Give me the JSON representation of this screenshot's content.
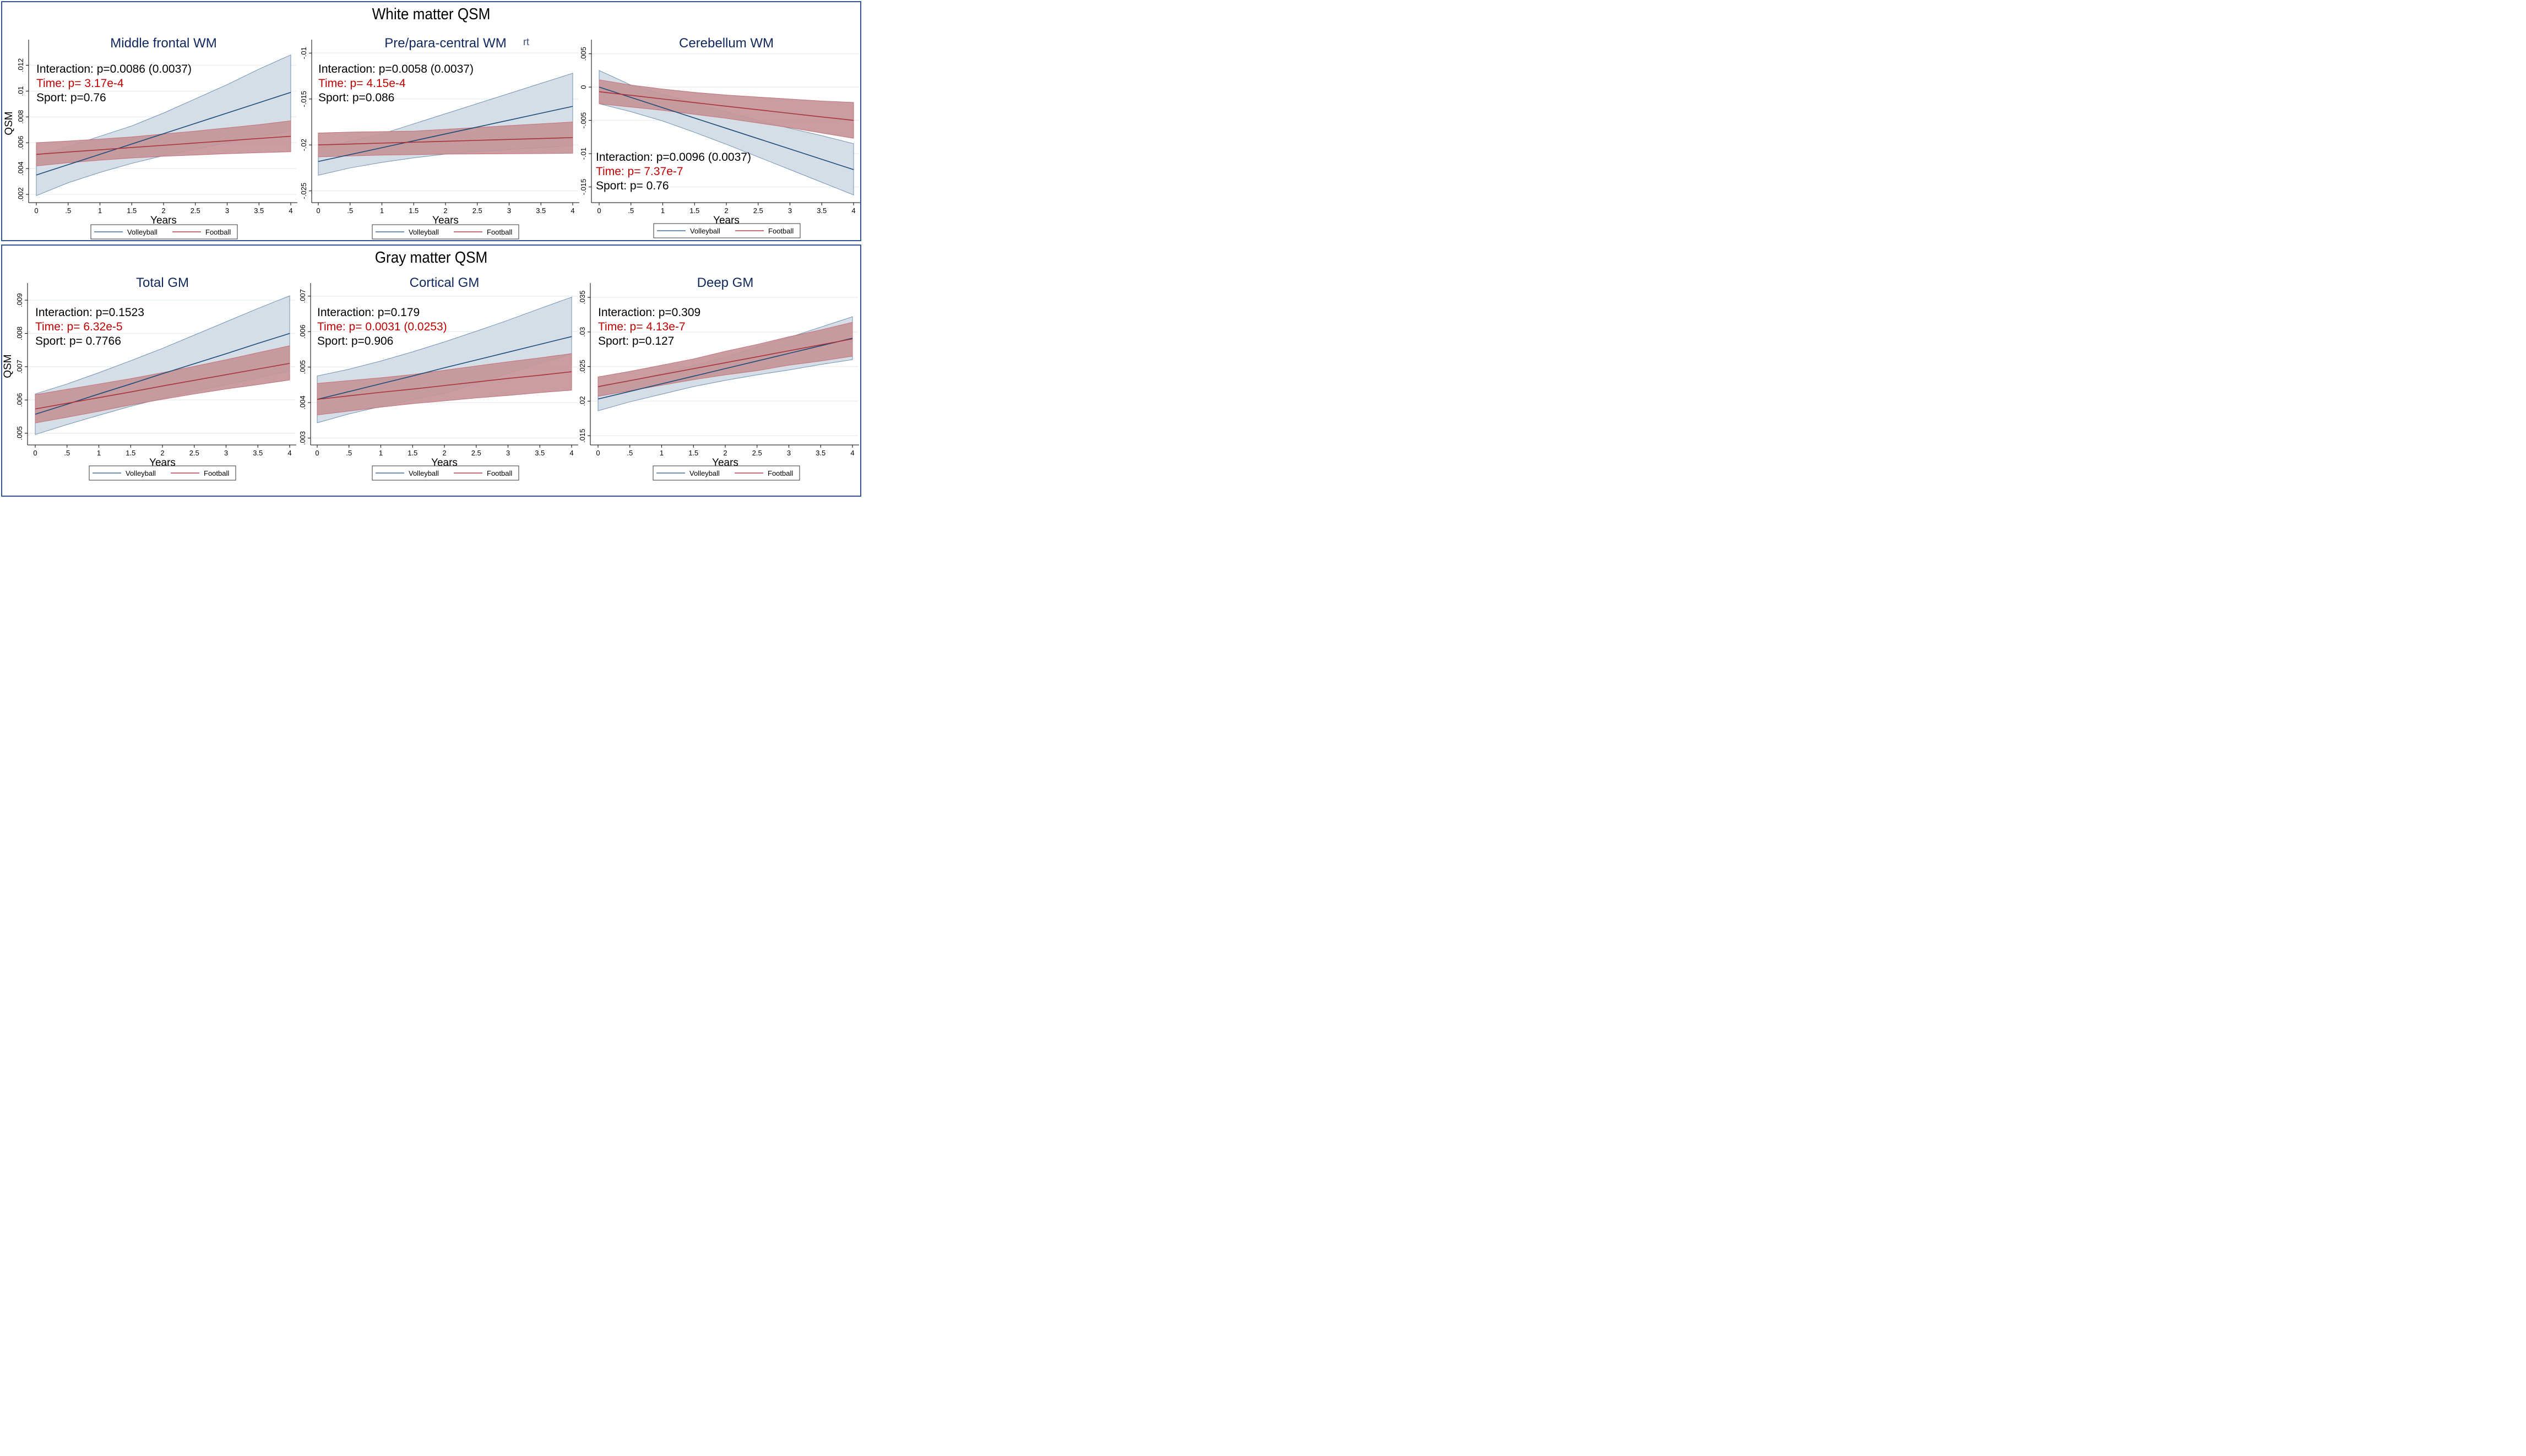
{
  "sections": [
    {
      "id": "wm",
      "title": "White matter QSM"
    },
    {
      "id": "gm",
      "title": "Gray matter QSM"
    }
  ],
  "stray_text": "rt",
  "colors": {
    "volleyball_line": "#1a4a78",
    "volleyball_band": "#d5dee6",
    "volleyball_band_edge": "#6f91b3",
    "football_line": "#a83238",
    "football_band": "#c4959a",
    "football_band_edge": "#c47178",
    "title": "#10275e",
    "significant_text": "#c00000",
    "frame": "#34558f",
    "grid": "#e7eff2"
  },
  "legend": {
    "items": [
      "Volleyball",
      "Football"
    ]
  },
  "chart_data": [
    {
      "type": "line",
      "section": "wm",
      "title": "Middle frontal WM",
      "xlabel": "Years",
      "ylabel": "QSM",
      "x": [
        0,
        4
      ],
      "xticks": [
        0,
        0.5,
        1,
        1.5,
        2,
        2.5,
        3,
        3.5,
        4
      ],
      "xtick_labels": [
        "0",
        ".5",
        "1",
        "1.5",
        "2",
        "2.5",
        "3",
        "3.5",
        "4"
      ],
      "ylim": [
        0.0017,
        0.0133
      ],
      "yticks": [
        0.002,
        0.004,
        0.006,
        0.008,
        0.01,
        0.012
      ],
      "ytick_labels": [
        ".002",
        ".004",
        ".006",
        ".008",
        ".01",
        ".012"
      ],
      "grid": true,
      "legend": "bottom",
      "annotation_position": "top-left",
      "annotations": [
        {
          "text": "Interaction: p=0.0086 (0.0037)",
          "significant": false
        },
        {
          "text": "Time: p= 3.17e-4",
          "significant": true
        },
        {
          "text": "Sport: p=0.76",
          "significant": false
        }
      ],
      "series": [
        {
          "name": "Volleyball",
          "x": [
            0,
            0.5,
            1,
            1.5,
            2,
            2.5,
            3,
            3.5,
            4
          ],
          "fit": [
            0.0035,
            0.0043,
            0.0051,
            0.0059,
            0.0067,
            0.0075,
            0.0083,
            0.0091,
            0.0099
          ],
          "ci_low": [
            0.0019,
            0.0029,
            0.0037,
            0.0044,
            0.005,
            0.0055,
            0.006,
            0.0065,
            0.0069
          ],
          "ci_high": [
            0.005,
            0.0057,
            0.0065,
            0.0073,
            0.0083,
            0.0094,
            0.0105,
            0.0117,
            0.0128
          ]
        },
        {
          "name": "Football",
          "x": [
            0,
            0.5,
            1,
            1.5,
            2,
            2.5,
            3,
            3.5,
            4
          ],
          "fit": [
            0.0051,
            0.00528,
            0.00545,
            0.00563,
            0.0058,
            0.00598,
            0.00615,
            0.00633,
            0.0065
          ],
          "ci_low": [
            0.0042,
            0.00445,
            0.00465,
            0.00482,
            0.00495,
            0.00505,
            0.00515,
            0.00523,
            0.0053
          ],
          "ci_high": [
            0.006,
            0.00613,
            0.00628,
            0.00645,
            0.00668,
            0.0069,
            0.00715,
            0.0074,
            0.0077
          ]
        }
      ]
    },
    {
      "type": "line",
      "section": "wm",
      "title": "Pre/para-central WM",
      "xlabel": "Years",
      "ylabel": "",
      "x": [
        0,
        4
      ],
      "xticks": [
        0,
        0.5,
        1,
        1.5,
        2,
        2.5,
        3,
        3.5,
        4
      ],
      "xtick_labels": [
        "0",
        ".5",
        "1",
        "1.5",
        "2",
        "2.5",
        "3",
        "3.5",
        "4"
      ],
      "ylim": [
        -0.0258,
        -0.0095
      ],
      "yticks": [
        -0.025,
        -0.02,
        -0.015,
        -0.01
      ],
      "ytick_labels": [
        "-.025",
        "-.02",
        "-.015",
        "-.01"
      ],
      "grid": true,
      "legend": "bottom",
      "annotation_position": "top-left",
      "annotations": [
        {
          "text": "Interaction: p=0.0058 (0.0037)",
          "significant": false
        },
        {
          "text": "Time: p= 4.15e-4",
          "significant": true
        },
        {
          "text": "Sport: p=0.086",
          "significant": false
        }
      ],
      "series": [
        {
          "name": "Volleyball",
          "x": [
            0,
            0.5,
            1,
            1.5,
            2,
            2.5,
            3,
            3.5,
            4
          ],
          "fit": [
            -0.0218,
            -0.02105,
            -0.0203,
            -0.01955,
            -0.0188,
            -0.01805,
            -0.0173,
            -0.01655,
            -0.0158
          ],
          "ci_low": [
            -0.0233,
            -0.0225,
            -0.0219,
            -0.0214,
            -0.021,
            -0.0207,
            -0.0205,
            -0.0203,
            -0.0201
          ],
          "ci_high": [
            -0.0203,
            -0.0196,
            -0.0188,
            -0.0177,
            -0.0166,
            -0.0155,
            -0.0144,
            -0.0133,
            -0.0122
          ]
        },
        {
          "name": "Football",
          "x": [
            0,
            0.5,
            1,
            1.5,
            2,
            2.5,
            3,
            3.5,
            4
          ],
          "fit": [
            -0.02,
            -0.0199,
            -0.0198,
            -0.0197,
            -0.0196,
            -0.0195,
            -0.0194,
            -0.0193,
            -0.0192
          ],
          "ci_low": [
            -0.0213,
            -0.0212,
            -0.0211,
            -0.02105,
            -0.021,
            -0.02098,
            -0.02096,
            -0.02094,
            -0.0209
          ],
          "ci_high": [
            -0.0187,
            -0.0186,
            -0.01855,
            -0.0185,
            -0.0183,
            -0.0181,
            -0.0179,
            -0.0177,
            -0.0175
          ]
        }
      ]
    },
    {
      "type": "line",
      "section": "wm",
      "title": "Cerebellum WM",
      "xlabel": "Years",
      "ylabel": "",
      "x": [
        0,
        4
      ],
      "xticks": [
        0,
        0.5,
        1,
        1.5,
        2,
        2.5,
        3,
        3.5,
        4
      ],
      "xtick_labels": [
        "0",
        ".5",
        "1",
        "1.5",
        "2",
        "2.5",
        "3",
        "3.5",
        "4"
      ],
      "ylim": [
        -0.0167,
        0.0058
      ],
      "yticks": [
        -0.015,
        -0.01,
        -0.005,
        0,
        0.005
      ],
      "ytick_labels": [
        "-.015",
        "-.01",
        "-.005",
        "0",
        ".005"
      ],
      "grid": true,
      "legend": "bottom",
      "annotation_position": "bottom-left",
      "annotations": [
        {
          "text": "Interaction: p=0.0096 (0.0037)",
          "significant": false
        },
        {
          "text": "Time: p= 7.37e-7",
          "significant": true
        },
        {
          "text": "Sport: p= 0.76",
          "significant": false
        }
      ],
      "series": [
        {
          "name": "Volleyball",
          "x": [
            0,
            0.5,
            1,
            1.5,
            2,
            2.5,
            3,
            3.5,
            4
          ],
          "fit": [
            0,
            -0.00155,
            -0.0031,
            -0.00465,
            -0.0062,
            -0.00775,
            -0.0093,
            -0.01085,
            -0.0124
          ],
          "ci_low": [
            -0.0025,
            -0.0037,
            -0.0051,
            -0.0068,
            -0.0086,
            -0.0105,
            -0.0124,
            -0.0143,
            -0.0162
          ],
          "ci_high": [
            0.0025,
            0.0003,
            -0.0011,
            -0.0024,
            -0.0037,
            -0.005,
            -0.0062,
            -0.0073,
            -0.0085
          ]
        },
        {
          "name": "Football",
          "x": [
            0,
            0.5,
            1,
            1.5,
            2,
            2.5,
            3,
            3.5,
            4
          ],
          "fit": [
            -0.0007,
            -0.00124,
            -0.00179,
            -0.00233,
            -0.00288,
            -0.00341,
            -0.00395,
            -0.00448,
            -0.005
          ],
          "ci_low": [
            -0.0025,
            -0.003,
            -0.0035,
            -0.0041,
            -0.0047,
            -0.0054,
            -0.0061,
            -0.0069,
            -0.0077
          ],
          "ci_high": [
            0.0011,
            0.0003,
            -0.0003,
            -0.0008,
            -0.0012,
            -0.0015,
            -0.0018,
            -0.0021,
            -0.0023
          ]
        }
      ]
    },
    {
      "type": "line",
      "section": "gm",
      "title": "Total GM",
      "xlabel": "Years",
      "ylabel": "QSM",
      "x": [
        0,
        4
      ],
      "xticks": [
        0,
        0.5,
        1,
        1.5,
        2,
        2.5,
        3,
        3.5,
        4
      ],
      "xtick_labels": [
        "0",
        ".5",
        "1",
        "1.5",
        "2",
        "2.5",
        "3",
        "3.5",
        "4"
      ],
      "ylim": [
        0.00478,
        0.00925
      ],
      "yticks": [
        0.005,
        0.006,
        0.007,
        0.008,
        0.009
      ],
      "ytick_labels": [
        ".005",
        ".006",
        ".007",
        ".008",
        ".009"
      ],
      "grid": true,
      "legend": "bottom",
      "annotation_position": "top-left",
      "annotations": [
        {
          "text": "Interaction: p=0.1523",
          "significant": false
        },
        {
          "text": "Time: p= 6.32e-5",
          "significant": true
        },
        {
          "text": "Sport: p= 0.7766",
          "significant": false
        }
      ],
      "series": [
        {
          "name": "Volleyball",
          "x": [
            0,
            0.5,
            1,
            1.5,
            2,
            2.5,
            3,
            3.5,
            4
          ],
          "fit": [
            0.00557,
            0.00587,
            0.00618,
            0.00648,
            0.00679,
            0.00709,
            0.00739,
            0.0077,
            0.008
          ],
          "ci_low": [
            0.00496,
            0.00526,
            0.00554,
            0.00581,
            0.00605,
            0.00626,
            0.00646,
            0.00666,
            0.00687
          ],
          "ci_high": [
            0.00618,
            0.00648,
            0.00682,
            0.00718,
            0.00755,
            0.00795,
            0.00835,
            0.00875,
            0.00913
          ]
        },
        {
          "name": "Football",
          "x": [
            0,
            0.5,
            1,
            1.5,
            2,
            2.5,
            3,
            3.5,
            4
          ],
          "fit": [
            0.00573,
            0.0059,
            0.00607,
            0.00624,
            0.00642,
            0.00659,
            0.00676,
            0.00693,
            0.0071
          ],
          "ci_low": [
            0.00531,
            0.00548,
            0.00566,
            0.00585,
            0.00602,
            0.00618,
            0.00633,
            0.00646,
            0.0066
          ],
          "ci_high": [
            0.00616,
            0.00632,
            0.00648,
            0.00664,
            0.00682,
            0.00701,
            0.00721,
            0.00742,
            0.00763
          ]
        }
      ]
    },
    {
      "type": "line",
      "section": "gm",
      "title": "Cortical GM",
      "xlabel": "Years",
      "ylabel": "",
      "x": [
        0,
        4
      ],
      "xticks": [
        0,
        0.5,
        1,
        1.5,
        2,
        2.5,
        3,
        3.5,
        4
      ],
      "xtick_labels": [
        "0",
        ".5",
        "1",
        "1.5",
        "2",
        "2.5",
        "3",
        "3.5",
        "4"
      ],
      "ylim": [
        0.00293,
        0.00712
      ],
      "yticks": [
        0.003,
        0.004,
        0.005,
        0.006,
        0.007
      ],
      "ytick_labels": [
        ".003",
        ".004",
        ".005",
        ".006",
        ".007"
      ],
      "grid": true,
      "legend": "bottom",
      "annotation_position": "top-left",
      "annotations": [
        {
          "text": "Interaction: p=0.179",
          "significant": false
        },
        {
          "text": "Time: p= 0.0031 (0.0253)",
          "significant": true
        },
        {
          "text": "Sport: p=0.906",
          "significant": false
        }
      ],
      "series": [
        {
          "name": "Volleyball",
          "x": [
            0,
            0.5,
            1,
            1.5,
            2,
            2.5,
            3,
            3.5,
            4
          ],
          "fit": [
            0.00409,
            0.00431,
            0.00453,
            0.00475,
            0.00498,
            0.0052,
            0.00542,
            0.00564,
            0.00586
          ],
          "ci_low": [
            0.00343,
            0.00368,
            0.00389,
            0.00408,
            0.00426,
            0.00454,
            0.00482,
            0.0051,
            0.00537
          ],
          "ci_high": [
            0.00475,
            0.00494,
            0.00517,
            0.00543,
            0.00571,
            0.00601,
            0.00632,
            0.00665,
            0.00697
          ]
        },
        {
          "name": "Football",
          "x": [
            0,
            0.5,
            1,
            1.5,
            2,
            2.5,
            3,
            3.5,
            4
          ],
          "fit": [
            0.00409,
            0.00419,
            0.00429,
            0.00438,
            0.00448,
            0.00458,
            0.00468,
            0.00477,
            0.00487
          ],
          "ci_low": [
            0.00365,
            0.00376,
            0.00387,
            0.00397,
            0.00405,
            0.00413,
            0.0042,
            0.00428,
            0.00435
          ],
          "ci_high": [
            0.00454,
            0.00462,
            0.0047,
            0.00479,
            0.00491,
            0.00503,
            0.00515,
            0.00526,
            0.00538
          ]
        }
      ]
    },
    {
      "type": "line",
      "section": "gm",
      "title": "Deep GM",
      "xlabel": "Years",
      "ylabel": "",
      "x": [
        0,
        4
      ],
      "xticks": [
        0,
        0.5,
        1,
        1.5,
        2,
        2.5,
        3,
        3.5,
        4
      ],
      "xtick_labels": [
        "0",
        ".5",
        "1",
        "1.5",
        "2",
        "2.5",
        "3",
        "3.5",
        "4"
      ],
      "ylim": [
        0.0143,
        0.0358
      ],
      "yticks": [
        0.015,
        0.02,
        0.025,
        0.03,
        0.035
      ],
      "ytick_labels": [
        ".015",
        ".02",
        ".025",
        ".03",
        ".035"
      ],
      "grid": true,
      "legend": "bottom",
      "annotation_position": "top-left",
      "annotations": [
        {
          "text": "Interaction: p=0.309",
          "significant": false
        },
        {
          "text": "Time: p= 4.13e-7",
          "significant": true
        },
        {
          "text": "Sport: p=0.127",
          "significant": false
        }
      ],
      "series": [
        {
          "name": "Volleyball",
          "x": [
            0,
            0.5,
            1,
            1.5,
            2,
            2.5,
            3,
            3.5,
            4
          ],
          "fit": [
            0.0203,
            0.0214,
            0.0225,
            0.0236,
            0.0247,
            0.0258,
            0.0269,
            0.028,
            0.0291
          ],
          "ci_low": [
            0.0186,
            0.0199,
            0.021,
            0.0221,
            0.023,
            0.0238,
            0.0245,
            0.0253,
            0.026
          ],
          "ci_high": [
            0.022,
            0.0229,
            0.024,
            0.0251,
            0.0264,
            0.0278,
            0.0292,
            0.0307,
            0.0322
          ]
        },
        {
          "name": "Football",
          "x": [
            0,
            0.5,
            1,
            1.5,
            2,
            2.5,
            3,
            3.5,
            4
          ],
          "fit": [
            0.0221,
            0.02296,
            0.02383,
            0.02469,
            0.02555,
            0.02641,
            0.02728,
            0.02814,
            0.029
          ],
          "ci_low": [
            0.0207,
            0.0215,
            0.0223,
            0.0231,
            0.0238,
            0.0244,
            0.0252,
            0.0258,
            0.0265
          ],
          "ci_high": [
            0.0235,
            0.0243,
            0.0252,
            0.0261,
            0.0272,
            0.0282,
            0.0293,
            0.0303,
            0.0314
          ]
        }
      ]
    }
  ]
}
